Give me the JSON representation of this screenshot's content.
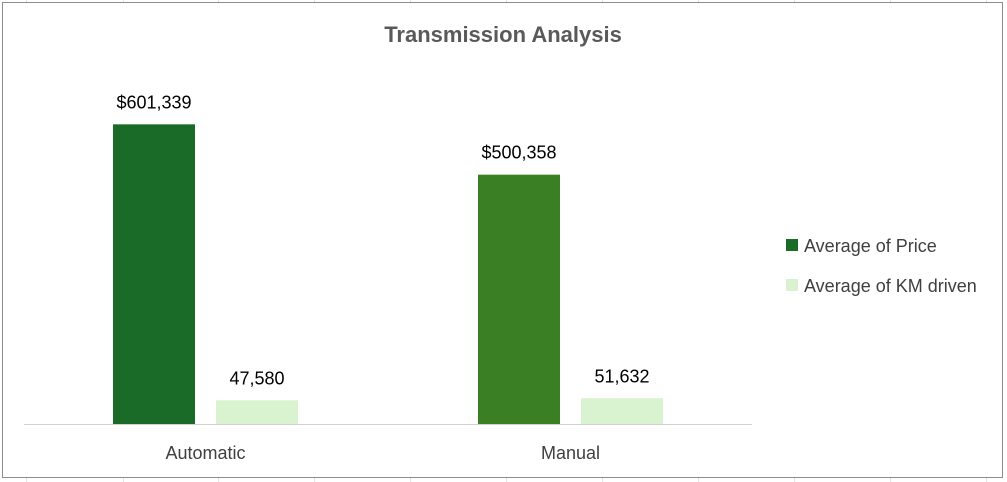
{
  "chart_data": {
    "type": "bar",
    "title": "Transmission Analysis",
    "xlabel": "",
    "ylabel": "",
    "categories": [
      "Automatic",
      "Manual"
    ],
    "series": [
      {
        "name": "Average of Price",
        "values": [
          601339,
          500358
        ],
        "value_labels": [
          "$601,339",
          "$500,358"
        ],
        "colors": [
          "#1a6b28",
          "#3b7f25"
        ]
      },
      {
        "name": "Average of KM driven",
        "values": [
          47580,
          51632
        ],
        "value_labels": [
          "47,580",
          "51,632"
        ],
        "colors": [
          "#d9f2d0",
          "#d9f2d0"
        ]
      }
    ],
    "ylim": [
      0,
      600000
    ],
    "grid": false,
    "legend_position": "right"
  }
}
